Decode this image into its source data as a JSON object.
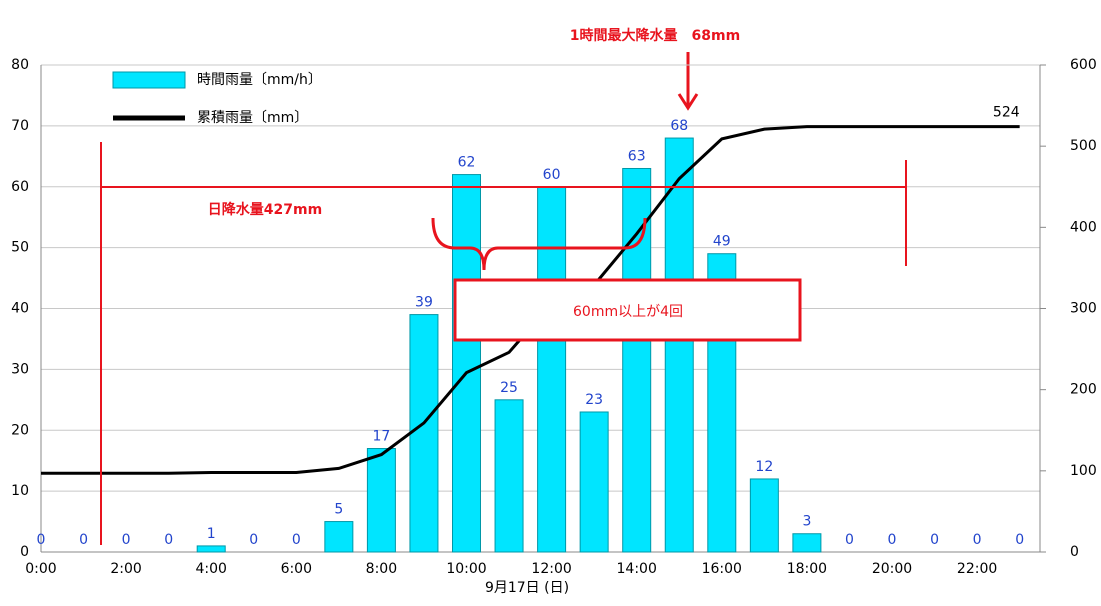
{
  "chart_data": {
    "type": "bar",
    "title": "1時間最大降水量　68mm",
    "x_label": "9月17日 (日)",
    "categories": [
      "0:00",
      null,
      "2:00",
      null,
      "4:00",
      null,
      "6:00",
      null,
      "8:00",
      null,
      "10:00",
      null,
      "12:00",
      null,
      "14:00",
      null,
      "16:00",
      null,
      "18:00",
      null,
      "20:00",
      null,
      "22:00",
      null
    ],
    "series": [
      {
        "name": "時間雨量〔mm/h〕",
        "type": "bar",
        "color": "#00e5ff",
        "values": [
          0,
          0,
          0,
          0,
          1,
          0,
          0,
          5,
          17,
          39,
          62,
          25,
          60,
          23,
          63,
          68,
          49,
          12,
          3,
          0,
          0,
          0,
          0,
          0
        ]
      },
      {
        "name": "累積雨量〔mm〕",
        "type": "line",
        "axis": "y2",
        "color": "#000000",
        "values": [
          97,
          97,
          97,
          97,
          98,
          98,
          98,
          103,
          120,
          159,
          221,
          246,
          306,
          329,
          392,
          460,
          509,
          521,
          524,
          524,
          524,
          524,
          524,
          524
        ]
      }
    ],
    "ylim": [
      0,
      80
    ],
    "yticks": [
      0,
      10,
      20,
      30,
      40,
      50,
      60,
      70,
      80
    ],
    "y2lim": [
      0,
      600
    ],
    "y2ticks": [
      0,
      100,
      200,
      300,
      400,
      500,
      600
    ],
    "grid": true,
    "annotations": [
      "日降水量427mm",
      "60mm以上が4回"
    ]
  }
}
